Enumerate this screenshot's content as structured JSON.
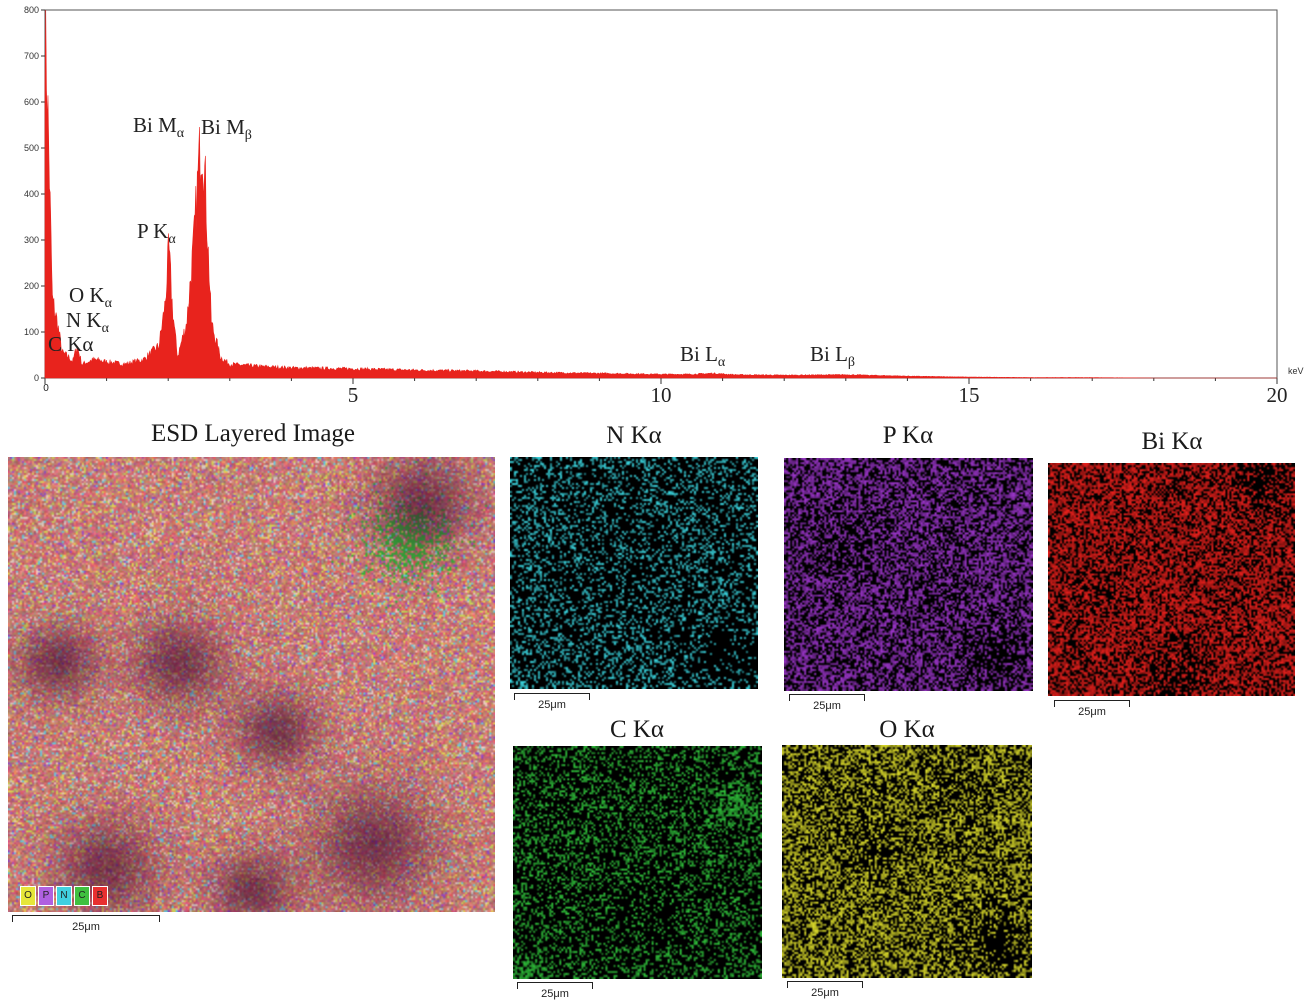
{
  "chart_data": {
    "type": "area",
    "xlabel": "keV",
    "ylabel": "",
    "xlim": [
      0,
      20
    ],
    "ylim": [
      0,
      800
    ],
    "x_ticks": [
      "0",
      "5",
      "10",
      "15",
      "20"
    ],
    "y_ticks": [
      "0",
      "100",
      "200",
      "300",
      "400",
      "500",
      "600",
      "700",
      "800"
    ],
    "grid": false,
    "series": [
      {
        "color": "#e8231d",
        "x": [
          0,
          0.05,
          0.12,
          0.2,
          0.28,
          0.39,
          0.45,
          0.52,
          0.6,
          0.8,
          1.0,
          1.3,
          1.6,
          1.85,
          1.95,
          2.01,
          2.07,
          2.15,
          2.3,
          2.42,
          2.5,
          2.55,
          2.6,
          2.7,
          2.85,
          3.0,
          3.5,
          4,
          5,
          6,
          7,
          8,
          9,
          10,
          10.5,
          10.84,
          11.2,
          12,
          13.02,
          14,
          15,
          16,
          17,
          18,
          19,
          20
        ],
        "y": [
          780,
          560,
          170,
          120,
          55,
          45,
          35,
          70,
          30,
          40,
          35,
          30,
          40,
          70,
          160,
          280,
          150,
          45,
          120,
          300,
          470,
          525,
          430,
          120,
          45,
          30,
          25,
          22,
          20,
          17,
          15,
          12,
          10,
          8,
          8,
          10,
          7,
          6,
          7,
          4,
          2,
          1,
          1,
          0,
          0,
          0
        ]
      }
    ],
    "peak_labels": [
      {
        "text": "Bi M",
        "sub": "α",
        "x": 2.42
      },
      {
        "text": "Bi M",
        "sub": "β",
        "x": 2.55
      },
      {
        "text": "P K",
        "sub": "α",
        "x": 2.01
      },
      {
        "text": "O K",
        "sub": "α",
        "x": 0.52
      },
      {
        "text": "N K",
        "sub": "α",
        "x": 0.39
      },
      {
        "text": "C Kα",
        "sub": "",
        "x": 0.28
      },
      {
        "text": "Bi L",
        "sub": "α",
        "x": 10.84
      },
      {
        "text": "Bi L",
        "sub": "β",
        "x": 13.02
      }
    ]
  },
  "maps": {
    "layered": {
      "title": "ESD Layered Image",
      "scale": "25μm"
    },
    "N": {
      "title": "N Kα",
      "scale": "25μm",
      "color": "#3ad6e0"
    },
    "P": {
      "title": "P Kα",
      "scale": "25μm",
      "color": "#9a35c8"
    },
    "Bi": {
      "title": "Bi Kα",
      "scale": "25μm",
      "color": "#e8201c"
    },
    "C": {
      "title": "C Kα",
      "scale": "25μm",
      "color": "#2fbf3a"
    },
    "O": {
      "title": "O Kα",
      "scale": "25μm",
      "color": "#d8d82a"
    }
  },
  "legend_chips": [
    {
      "letter": "O",
      "color": "#e6e63a"
    },
    {
      "letter": "P",
      "color": "#b060e0"
    },
    {
      "letter": "N",
      "color": "#40d0e0"
    },
    {
      "letter": "C",
      "color": "#40c040"
    },
    {
      "letter": "B",
      "color": "#e83030"
    }
  ]
}
